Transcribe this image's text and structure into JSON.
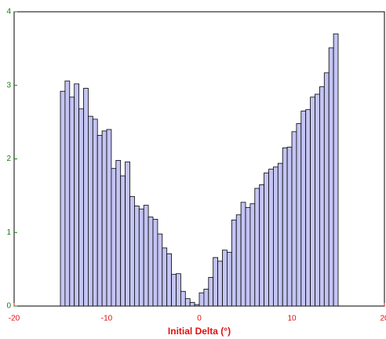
{
  "chart_data": {
    "type": "histogram",
    "x_label": "Initial Delta (°)",
    "bins": [
      -15,
      -14.5,
      -14,
      -13.5,
      -13,
      -12.5,
      -12,
      -11.5,
      -11,
      -10.5,
      -10,
      -9.5,
      -9,
      -8.5,
      -8,
      -7.5,
      -7,
      -6.5,
      -6,
      -5.5,
      -5,
      -4.5,
      -4,
      -3.5,
      -3,
      -2.5,
      -2,
      -1.5,
      -1,
      -0.5,
      0,
      0.5,
      1,
      1.5,
      2,
      2.5,
      3,
      3.5,
      4,
      4.5,
      5,
      5.5,
      6,
      6.5,
      7,
      7.5,
      8,
      8.5,
      9,
      9.5,
      10,
      10.5,
      11,
      11.5,
      12,
      12.5,
      13,
      13.5,
      14,
      14.5,
      15
    ],
    "values": [
      2.92,
      3.06,
      2.84,
      3.02,
      2.68,
      2.96,
      2.58,
      2.54,
      2.32,
      2.38,
      2.4,
      1.87,
      1.98,
      1.77,
      1.96,
      1.49,
      1.36,
      1.32,
      1.37,
      1.21,
      1.18,
      0.98,
      0.79,
      0.71,
      0.43,
      0.44,
      0.2,
      0.1,
      0.05,
      0.02,
      0.18,
      0.23,
      0.39,
      0.66,
      0.61,
      0.76,
      0.73,
      1.17,
      1.24,
      1.41,
      1.34,
      1.39,
      1.6,
      1.65,
      1.81,
      1.86,
      1.89,
      1.94,
      2.15,
      2.16,
      2.37,
      2.48,
      2.65,
      2.67,
      2.84,
      2.88,
      2.98,
      3.17,
      3.51,
      3.7
    ],
    "color": "#c4c4f4",
    "xlim": [
      -20,
      20
    ],
    "xticks": [
      -20,
      -10,
      0,
      10,
      20
    ],
    "ylim": [
      0,
      4
    ],
    "yticks": [
      0,
      1,
      2,
      3,
      4
    ],
    "x_tick_color": "#e01010",
    "y_tick_color": "#108010",
    "x_label_color": "#e01010"
  }
}
